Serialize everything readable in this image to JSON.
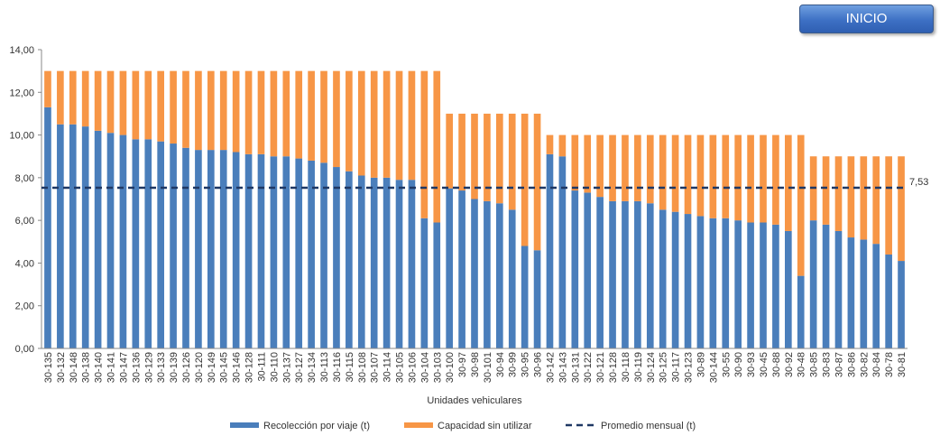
{
  "button": {
    "label": "INICIO"
  },
  "colors": {
    "collected": "#4a7ebb",
    "unused": "#f79646",
    "average": "#1f3864",
    "avg_label": "#4a7ebb"
  },
  "chart_data": {
    "type": "bar",
    "stacked": true,
    "xlabel": "Unidades vehiculares",
    "ylabel": "",
    "ylim": [
      0,
      14
    ],
    "y_ticks": [
      "0,00",
      "2,00",
      "4,00",
      "6,00",
      "8,00",
      "10,00",
      "12,00",
      "14,00"
    ],
    "grid": false,
    "legend_position": "bottom",
    "categories": [
      "30-135",
      "30-132",
      "30-148",
      "30-138",
      "30-140",
      "30-141",
      "30-147",
      "30-136",
      "30-129",
      "30-133",
      "30-139",
      "30-126",
      "30-120",
      "30-149",
      "30-145",
      "30-146",
      "30-128",
      "30-111",
      "30-110",
      "30-137",
      "30-127",
      "30-134",
      "30-113",
      "30-116",
      "30-115",
      "30-108",
      "30-107",
      "30-114",
      "30-105",
      "30-106",
      "30-104",
      "30-103",
      "30-100",
      "30-97",
      "30-98",
      "30-101",
      "30-94",
      "30-99",
      "30-95",
      "30-96",
      "30-142",
      "30-143",
      "30-131",
      "30-122",
      "30-121",
      "30-128",
      "30-118",
      "30-119",
      "30-124",
      "30-125",
      "30-117",
      "30-123",
      "30-89",
      "30-144",
      "30-55",
      "30-90",
      "30-93",
      "30-45",
      "30-88",
      "30-92",
      "30-48",
      "30-85",
      "30-83",
      "30-87",
      "30-86",
      "30-82",
      "30-84",
      "30-78",
      "30-81"
    ],
    "series": [
      {
        "name": "Recolección por viaje (t)",
        "values": [
          11.3,
          10.5,
          10.5,
          10.4,
          10.2,
          10.1,
          10.0,
          9.8,
          9.8,
          9.7,
          9.6,
          9.4,
          9.3,
          9.3,
          9.3,
          9.2,
          9.1,
          9.1,
          9.0,
          9.0,
          8.9,
          8.8,
          8.7,
          8.5,
          8.3,
          8.1,
          8.0,
          8.0,
          7.9,
          7.9,
          6.1,
          5.9,
          7.5,
          7.4,
          7.0,
          6.9,
          6.8,
          6.5,
          4.8,
          4.6,
          9.1,
          9.0,
          7.4,
          7.3,
          7.1,
          6.9,
          6.9,
          6.9,
          6.8,
          6.5,
          6.4,
          6.3,
          6.2,
          6.1,
          6.1,
          6.0,
          5.9,
          5.9,
          5.8,
          5.5,
          3.4,
          6.0,
          5.8,
          5.5,
          5.2,
          5.1,
          4.9,
          4.4,
          4.1
        ]
      },
      {
        "name": "Capacidad sin utilizar",
        "values": [
          1.7,
          2.5,
          2.5,
          2.6,
          2.8,
          2.9,
          3.0,
          3.2,
          3.2,
          3.3,
          3.4,
          3.6,
          3.7,
          3.7,
          3.7,
          3.8,
          3.9,
          3.9,
          4.0,
          4.0,
          4.1,
          4.2,
          4.3,
          4.5,
          4.7,
          4.9,
          5.0,
          5.0,
          5.1,
          5.1,
          6.9,
          7.1,
          3.5,
          3.6,
          4.0,
          4.1,
          4.2,
          4.5,
          6.2,
          6.4,
          0.9,
          1.0,
          2.6,
          2.7,
          2.9,
          3.1,
          3.1,
          3.1,
          3.2,
          3.5,
          3.6,
          3.7,
          3.8,
          3.9,
          3.9,
          4.0,
          4.1,
          4.1,
          4.2,
          4.5,
          6.6,
          3.0,
          3.2,
          3.5,
          3.8,
          3.9,
          4.1,
          4.6,
          4.9
        ]
      }
    ],
    "average": {
      "name": "Promedio mensual (t)",
      "value": 7.53,
      "label": "7,53"
    }
  }
}
